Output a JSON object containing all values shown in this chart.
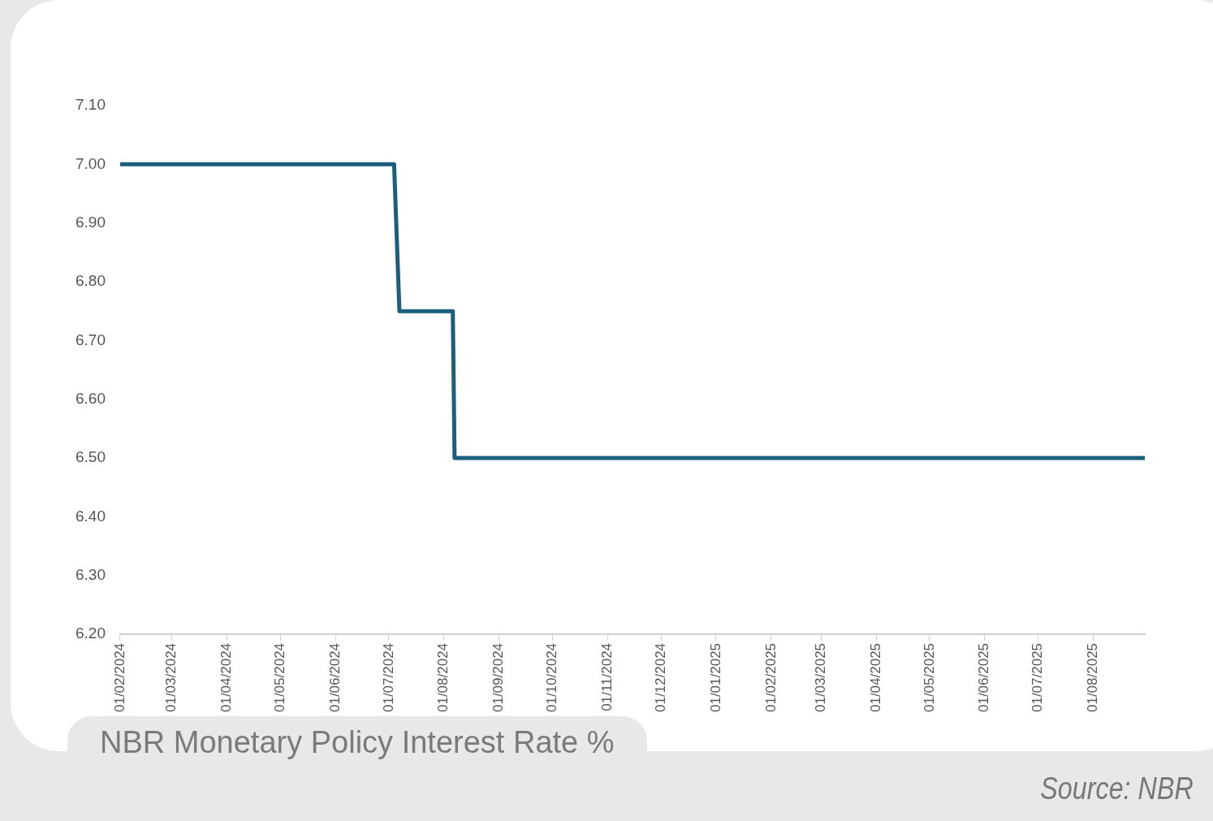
{
  "chart_data": {
    "type": "line",
    "title": "NBR Monetary Policy Interest Rate %",
    "annotations": [
      "Source: NBR"
    ],
    "series": [
      {
        "color": "#1b5e7e",
        "x": [
          "2024-02-01",
          "2024-07-04",
          "2024-07-07",
          "2024-08-06",
          "2024-08-07",
          "2025-08-30"
        ],
        "values": [
          7.0,
          7.0,
          6.75,
          6.75,
          6.5,
          6.5
        ]
      }
    ],
    "xlim": [
      "2024-02-01",
      "2025-08-30"
    ],
    "xticks": [
      {
        "value": "2024-02-01",
        "label": "01/02/2024"
      },
      {
        "value": "2024-03-01",
        "label": "01/03/2024"
      },
      {
        "value": "2024-04-01",
        "label": "01/04/2024"
      },
      {
        "value": "2024-05-01",
        "label": "01/05/2024"
      },
      {
        "value": "2024-06-01",
        "label": "01/06/2024"
      },
      {
        "value": "2024-07-01",
        "label": "01/07/2024"
      },
      {
        "value": "2024-08-01",
        "label": "01/08/2024"
      },
      {
        "value": "2024-09-01",
        "label": "01/09/2024"
      },
      {
        "value": "2024-10-01",
        "label": "01/10/2024"
      },
      {
        "value": "2024-11-01",
        "label": "01/11/2024"
      },
      {
        "value": "2024-12-01",
        "label": "01/12/2024"
      },
      {
        "value": "2025-01-01",
        "label": "01/01/2025"
      },
      {
        "value": "2025-02-01",
        "label": "01/02/2025"
      },
      {
        "value": "2025-03-01",
        "label": "01/03/2025"
      },
      {
        "value": "2025-04-01",
        "label": "01/04/2025"
      },
      {
        "value": "2025-05-01",
        "label": "01/05/2025"
      },
      {
        "value": "2025-06-01",
        "label": "01/06/2025"
      },
      {
        "value": "2025-07-01",
        "label": "01/07/2025"
      },
      {
        "value": "2025-08-01",
        "label": "01/08/2025"
      }
    ],
    "ylim": [
      6.2,
      7.1
    ],
    "yticks": [
      {
        "value": 6.2,
        "label": "6.20"
      },
      {
        "value": 6.3,
        "label": "6.30"
      },
      {
        "value": 6.4,
        "label": "6.40"
      },
      {
        "value": 6.5,
        "label": "6.50"
      },
      {
        "value": 6.6,
        "label": "6.60"
      },
      {
        "value": 6.7,
        "label": "6.70"
      },
      {
        "value": 6.8,
        "label": "6.80"
      },
      {
        "value": 6.9,
        "label": "6.90"
      },
      {
        "value": 7.0,
        "label": "7.00"
      },
      {
        "value": 7.1,
        "label": "7.10"
      }
    ],
    "grid": false,
    "legend": false,
    "marker": "none",
    "line_style": "solid"
  }
}
